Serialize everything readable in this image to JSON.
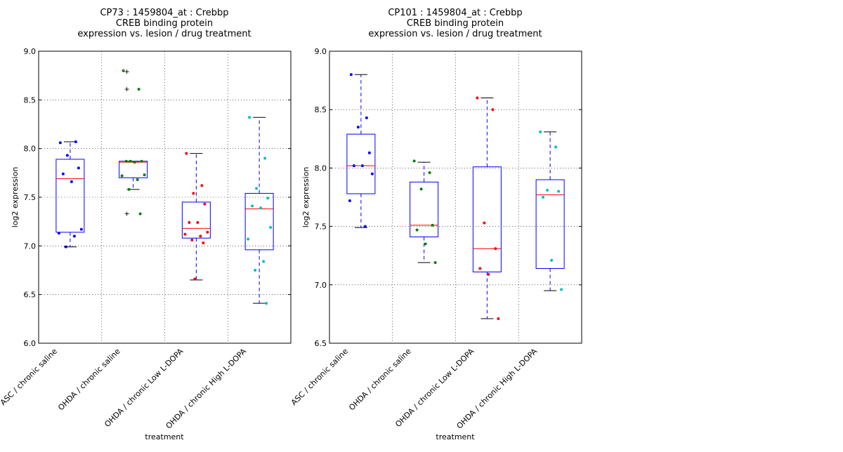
{
  "chart_data": [
    {
      "type": "box",
      "title": [
        "CP73 : 1459804_at : Crebbp",
        "CREB binding protein",
        "expression vs. lesion / drug treatment"
      ],
      "xlabel": "treatment",
      "ylabel": "log2 expression",
      "ylim": [
        6.0,
        9.0
      ],
      "yticks": [
        6.0,
        6.5,
        7.0,
        7.5,
        8.0,
        8.5,
        9.0
      ],
      "grid": true,
      "categories": [
        "ASC / chronic saline",
        "OHDA / chronic saline",
        "OHDA / chronic Low L-DOPA",
        "OHDA / chronic High L-DOPA"
      ],
      "point_colors": [
        "#0000ff",
        "#008000",
        "#ff0000",
        "#00bfbf"
      ],
      "box_color": "#0000ff",
      "median_color": "#ff0000",
      "boxes": [
        {
          "whisker_low": 6.99,
          "q1": 7.14,
          "median": 7.69,
          "q3": 7.89,
          "whisker_high": 8.07,
          "outliers": []
        },
        {
          "whisker_low": 7.58,
          "q1": 7.7,
          "median": 7.86,
          "q3": 7.87,
          "whisker_high": 7.87,
          "outliers": [
            8.79,
            8.61,
            7.33
          ]
        },
        {
          "whisker_low": 6.65,
          "q1": 7.08,
          "median": 7.18,
          "q3": 7.45,
          "whisker_high": 7.95,
          "outliers": []
        },
        {
          "whisker_low": 6.41,
          "q1": 6.96,
          "median": 7.38,
          "q3": 7.54,
          "whisker_high": 8.32,
          "outliers": []
        }
      ],
      "points": [
        [
          8.06,
          8.07,
          7.93,
          7.8,
          7.74,
          7.66,
          7.17,
          7.13,
          7.1,
          6.99
        ],
        [
          8.8,
          8.61,
          7.87,
          7.87,
          7.87,
          7.86,
          7.73,
          7.72,
          7.68,
          7.58,
          7.33
        ],
        [
          7.95,
          7.62,
          7.54,
          7.43,
          7.24,
          7.24,
          7.14,
          7.12,
          7.1,
          7.06,
          7.03,
          6.66
        ],
        [
          8.32,
          7.9,
          7.59,
          7.49,
          7.41,
          7.39,
          7.19,
          7.07,
          6.84,
          6.75,
          6.41
        ]
      ]
    },
    {
      "type": "box",
      "title": [
        "CP101 : 1459804_at : Crebbp",
        "CREB binding protein",
        "expression vs. lesion / drug treatment"
      ],
      "xlabel": "treatment",
      "ylabel": "log2 expression",
      "ylim": [
        6.5,
        9.0
      ],
      "yticks": [
        6.5,
        7.0,
        7.5,
        8.0,
        8.5,
        9.0
      ],
      "grid": true,
      "categories": [
        "ASC / chronic saline",
        "OHDA / chronic saline",
        "OHDA / chronic Low L-DOPA",
        "OHDA / chronic High L-DOPA"
      ],
      "point_colors": [
        "#0000ff",
        "#008000",
        "#ff0000",
        "#00bfbf"
      ],
      "box_color": "#0000ff",
      "median_color": "#ff0000",
      "boxes": [
        {
          "whisker_low": 7.49,
          "q1": 7.78,
          "median": 8.02,
          "q3": 8.29,
          "whisker_high": 8.8,
          "outliers": []
        },
        {
          "whisker_low": 7.19,
          "q1": 7.41,
          "median": 7.51,
          "q3": 7.88,
          "whisker_high": 8.05,
          "outliers": []
        },
        {
          "whisker_low": 6.71,
          "q1": 7.11,
          "median": 7.31,
          "q3": 8.01,
          "whisker_high": 8.6,
          "outliers": []
        },
        {
          "whisker_low": 6.95,
          "q1": 7.14,
          "median": 7.77,
          "q3": 7.9,
          "whisker_high": 8.31,
          "outliers": []
        }
      ],
      "points": [
        [
          8.8,
          8.43,
          8.35,
          8.13,
          8.02,
          8.02,
          7.95,
          7.72,
          7.5
        ],
        [
          8.06,
          7.96,
          7.82,
          7.51,
          7.47,
          7.35,
          7.19
        ],
        [
          8.6,
          8.5,
          7.53,
          7.31,
          7.14,
          7.09,
          6.71
        ],
        [
          8.31,
          8.18,
          7.81,
          7.8,
          7.75,
          7.21,
          6.96
        ]
      ]
    }
  ]
}
